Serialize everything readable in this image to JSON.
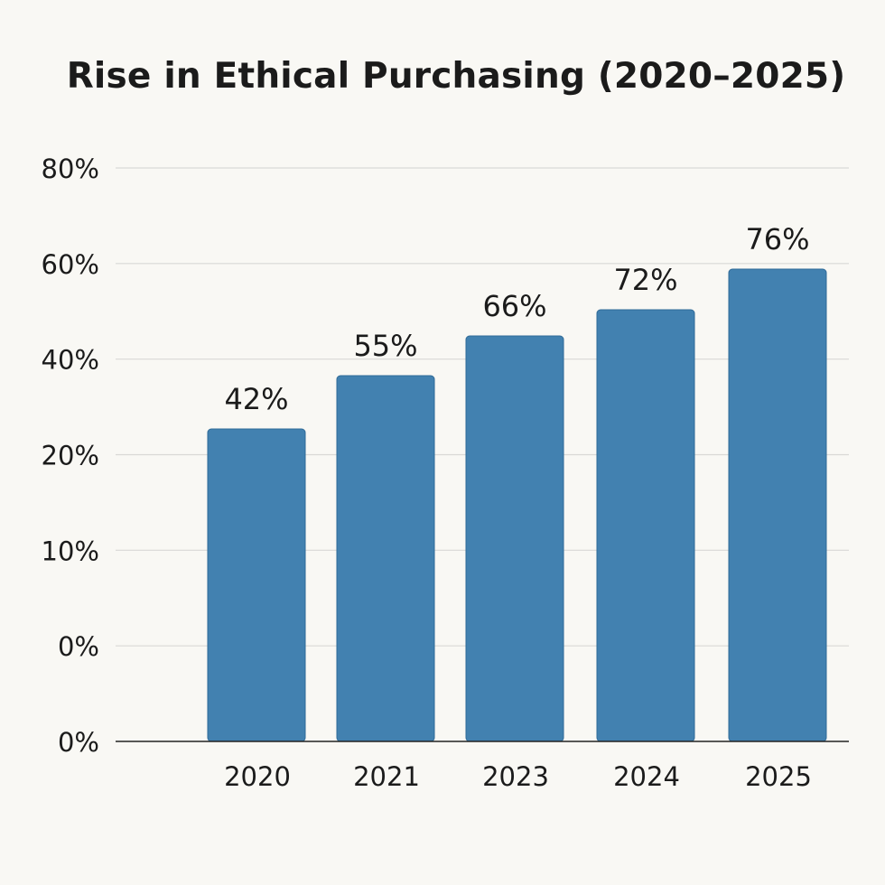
{
  "chart_data": {
    "type": "bar",
    "title": "Rise in Ethical Purchasing (2020–2025)",
    "xlabel": "",
    "ylabel": "",
    "categories": [
      "2020",
      "2021",
      "2023",
      "2024",
      "2025"
    ],
    "values": [
      42,
      55,
      66,
      72,
      76
    ],
    "data_labels": [
      "42%",
      "55%",
      "66%",
      "72%",
      "76%"
    ],
    "y_tick_labels": [
      "0%",
      "0%",
      "10%",
      "20%",
      "40%",
      "60%",
      "80%"
    ],
    "grid": true,
    "legend": "none",
    "colors": {
      "bar": "#4281b0",
      "bar_edge": "#2f6a97",
      "grid": "#d9d9d6",
      "axis": "#222222",
      "background": "#f9f8f4"
    }
  }
}
